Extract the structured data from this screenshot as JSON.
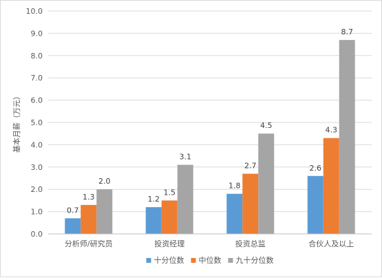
{
  "chart_data": {
    "type": "bar",
    "title": "",
    "xlabel": "",
    "ylabel": "基本月薪（万元）",
    "ylim": [
      0,
      10
    ],
    "ytick_step": 1,
    "ytick_labels": [
      "0.0",
      "1.0",
      "2.0",
      "3.0",
      "4.0",
      "5.0",
      "6.0",
      "7.0",
      "8.0",
      "9.0",
      "10.0"
    ],
    "grid": true,
    "legend_position": "bottom",
    "categories": [
      "分析师/研究员",
      "投资经理",
      "投资总监",
      "合伙人及以上"
    ],
    "series": [
      {
        "name": "十分位数",
        "color": "#5B9BD5",
        "values": [
          0.7,
          1.2,
          1.8,
          2.6
        ],
        "labels": [
          "0.7",
          "1.2",
          "1.8",
          "2.6"
        ]
      },
      {
        "name": "中位数",
        "color": "#ED7D31",
        "values": [
          1.3,
          1.5,
          2.7,
          4.3
        ],
        "labels": [
          "1.3",
          "1.5",
          "2.7",
          "4.3"
        ]
      },
      {
        "name": "九十分位数",
        "color": "#A5A5A5",
        "values": [
          2.0,
          3.1,
          4.5,
          8.7
        ],
        "labels": [
          "2.0",
          "3.1",
          "4.5",
          "8.7"
        ]
      }
    ]
  }
}
